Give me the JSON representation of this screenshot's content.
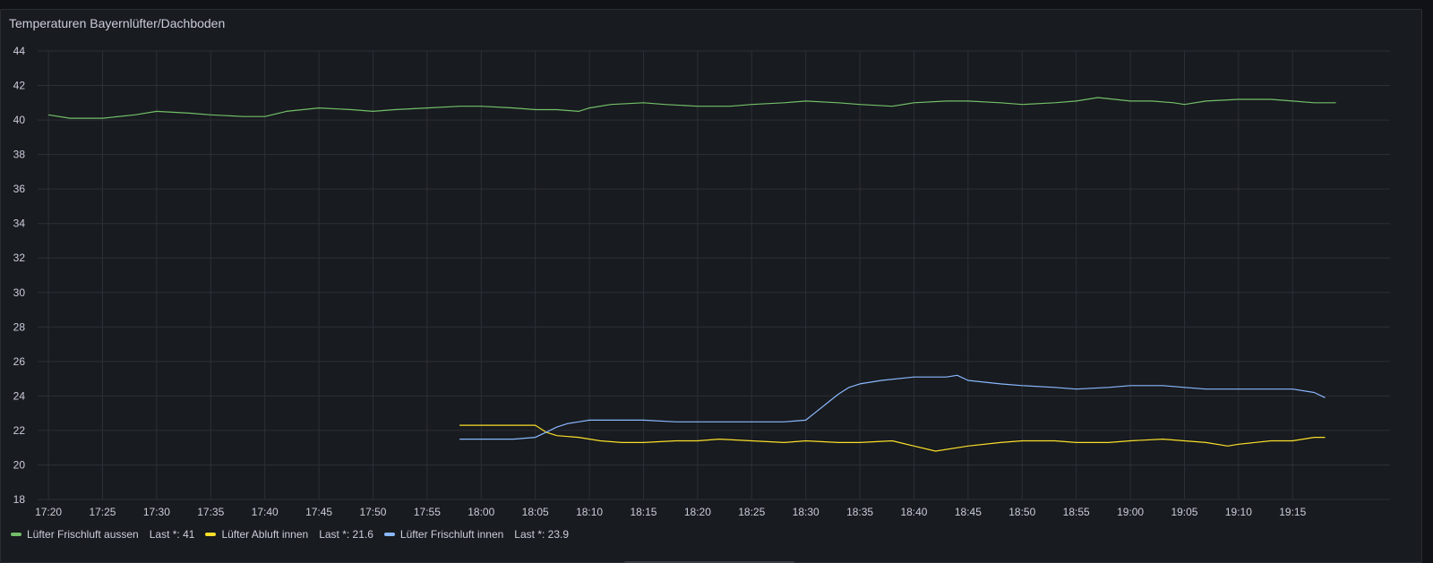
{
  "panel": {
    "title": "Temperaturen Bayernlüfter/Dachboden"
  },
  "colors": {
    "background": "#181b1f",
    "grid": "#2c3038",
    "axis_text": "#ccccdc"
  },
  "chart_data": {
    "type": "line",
    "title": "Temperaturen Bayernlüfter/Dachboden",
    "xlabel": "",
    "ylabel": "",
    "ylim": [
      18,
      44
    ],
    "xlim": [
      "17:19",
      "19:24"
    ],
    "y_ticks": [
      44,
      42,
      40,
      38,
      36,
      34,
      32,
      30,
      28,
      26,
      24,
      22,
      20,
      18
    ],
    "x_ticks": [
      "17:20",
      "17:25",
      "17:30",
      "17:35",
      "17:40",
      "17:45",
      "17:50",
      "17:55",
      "18:00",
      "18:05",
      "18:10",
      "18:15",
      "18:20",
      "18:25",
      "18:30",
      "18:35",
      "18:40",
      "18:45",
      "18:50",
      "18:55",
      "19:00",
      "19:05",
      "19:10",
      "19:15"
    ],
    "grid": true,
    "legend_position": "bottom-left",
    "series": [
      {
        "name": "Lüfter Frischluft aussen",
        "color": "#73bf69",
        "last_label": "Last *: 41",
        "x": [
          "17:20",
          "17:22",
          "17:25",
          "17:28",
          "17:30",
          "17:33",
          "17:35",
          "17:38",
          "17:40",
          "17:42",
          "17:45",
          "17:48",
          "17:50",
          "17:52",
          "17:55",
          "17:58",
          "18:00",
          "18:03",
          "18:05",
          "18:07",
          "18:09",
          "18:10",
          "18:12",
          "18:15",
          "18:17",
          "18:20",
          "18:23",
          "18:25",
          "18:28",
          "18:30",
          "18:33",
          "18:35",
          "18:38",
          "18:40",
          "18:43",
          "18:45",
          "18:48",
          "18:50",
          "18:53",
          "18:55",
          "18:57",
          "19:00",
          "19:02",
          "19:04",
          "19:05",
          "19:07",
          "19:10",
          "19:13",
          "19:15",
          "19:17",
          "19:19"
        ],
        "values": [
          40.3,
          40.1,
          40.1,
          40.3,
          40.5,
          40.4,
          40.3,
          40.2,
          40.2,
          40.5,
          40.7,
          40.6,
          40.5,
          40.6,
          40.7,
          40.8,
          40.8,
          40.7,
          40.6,
          40.6,
          40.5,
          40.7,
          40.9,
          41.0,
          40.9,
          40.8,
          40.8,
          40.9,
          41.0,
          41.1,
          41.0,
          40.9,
          40.8,
          41.0,
          41.1,
          41.1,
          41.0,
          40.9,
          41.0,
          41.1,
          41.3,
          41.1,
          41.1,
          41.0,
          40.9,
          41.1,
          41.2,
          41.2,
          41.1,
          41.0,
          41.0
        ]
      },
      {
        "name": "Lüfter Abluft innen",
        "color": "#fade2a",
        "last_label": "Last *: 21.6",
        "x": [
          "17:58",
          "18:00",
          "18:03",
          "18:05",
          "18:06",
          "18:07",
          "18:09",
          "18:11",
          "18:13",
          "18:15",
          "18:18",
          "18:20",
          "18:22",
          "18:25",
          "18:28",
          "18:30",
          "18:33",
          "18:35",
          "18:38",
          "18:40",
          "18:42",
          "18:45",
          "18:48",
          "18:50",
          "18:53",
          "18:55",
          "18:58",
          "19:00",
          "19:03",
          "19:05",
          "19:07",
          "19:09",
          "19:10",
          "19:13",
          "19:15",
          "19:17",
          "19:18"
        ],
        "values": [
          22.3,
          22.3,
          22.3,
          22.3,
          21.9,
          21.7,
          21.6,
          21.4,
          21.3,
          21.3,
          21.4,
          21.4,
          21.5,
          21.4,
          21.3,
          21.4,
          21.3,
          21.3,
          21.4,
          21.1,
          20.8,
          21.1,
          21.3,
          21.4,
          21.4,
          21.3,
          21.3,
          21.4,
          21.5,
          21.4,
          21.3,
          21.1,
          21.2,
          21.4,
          21.4,
          21.6,
          21.6
        ]
      },
      {
        "name": "Lüfter Frischluft innen",
        "color": "#8ab8ff",
        "last_label": "Last *: 23.9",
        "x": [
          "17:58",
          "18:00",
          "18:03",
          "18:05",
          "18:06",
          "18:07",
          "18:08",
          "18:09",
          "18:10",
          "18:12",
          "18:15",
          "18:18",
          "18:20",
          "18:23",
          "18:25",
          "18:28",
          "18:30",
          "18:31",
          "18:32",
          "18:33",
          "18:34",
          "18:35",
          "18:37",
          "18:40",
          "18:43",
          "18:44",
          "18:45",
          "18:48",
          "18:50",
          "18:53",
          "18:55",
          "18:58",
          "19:00",
          "19:03",
          "19:05",
          "19:07",
          "19:10",
          "19:13",
          "19:15",
          "19:17",
          "19:18"
        ],
        "values": [
          21.5,
          21.5,
          21.5,
          21.6,
          21.9,
          22.2,
          22.4,
          22.5,
          22.6,
          22.6,
          22.6,
          22.5,
          22.5,
          22.5,
          22.5,
          22.5,
          22.6,
          23.1,
          23.6,
          24.1,
          24.5,
          24.7,
          24.9,
          25.1,
          25.1,
          25.2,
          24.9,
          24.7,
          24.6,
          24.5,
          24.4,
          24.5,
          24.6,
          24.6,
          24.5,
          24.4,
          24.4,
          24.4,
          24.4,
          24.2,
          23.9
        ]
      }
    ]
  }
}
